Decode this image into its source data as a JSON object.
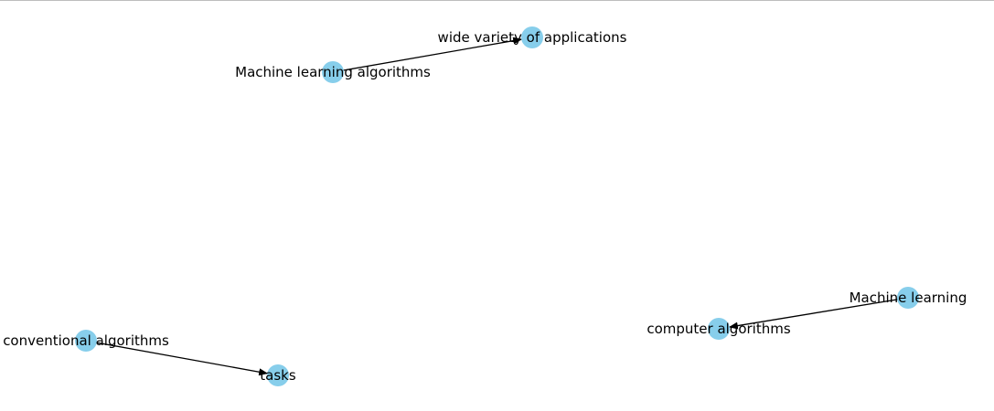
{
  "graph": {
    "node_color": "#87ceeb",
    "edge_color": "#000000",
    "nodes": [
      {
        "id": "n1",
        "label": "Machine learning algorithms"
      },
      {
        "id": "n2",
        "label": "wide variety of applications"
      },
      {
        "id": "n3",
        "label": "conventional algorithms"
      },
      {
        "id": "n4",
        "label": "tasks"
      },
      {
        "id": "n5",
        "label": "Machine learning"
      },
      {
        "id": "n6",
        "label": "computer algorithms"
      }
    ],
    "edges": [
      {
        "from": "n1",
        "to": "n2"
      },
      {
        "from": "n3",
        "to": "n4"
      },
      {
        "from": "n5",
        "to": "n6"
      }
    ]
  }
}
